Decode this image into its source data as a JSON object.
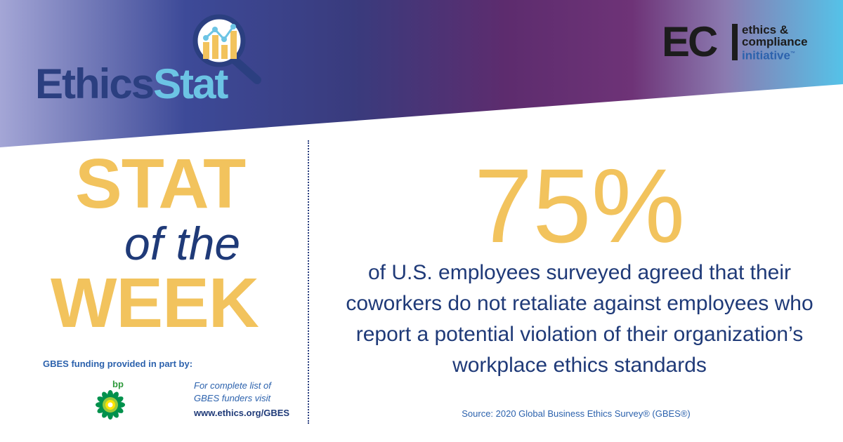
{
  "brand": {
    "ethicsstat_part1": "Ethics",
    "ethicsstat_part2": "Stat",
    "eci_letters": "EC",
    "eci_line1": "ethics &",
    "eci_line2": "compliance",
    "eci_line3": "initiative",
    "eci_trademark": "™"
  },
  "headline": {
    "stat": "STAT",
    "of_the": "of the",
    "week": "WEEK"
  },
  "statistic": {
    "value": "75%",
    "description": "of U.S. employees surveyed agreed that their coworkers do not retaliate against employees who report a potential violation of their organization’s workplace ethics standards",
    "source": "Source: 2020 Global Business Ethics Survey® (GBES®)"
  },
  "funding": {
    "heading": "GBES funding provided in part by:",
    "sponsor_label": "bp",
    "note_line1": "For complete list of",
    "note_line2": "GBES funders visit",
    "url": "www.ethics.org/GBES"
  },
  "colors": {
    "gold": "#f2c35d",
    "navy": "#1f3a78",
    "blue": "#2c62ad",
    "light_blue": "#6cc4e4",
    "purple": "#6a2a6d"
  },
  "icons": [
    "magnifier-chart-icon",
    "bp-helios-icon"
  ]
}
